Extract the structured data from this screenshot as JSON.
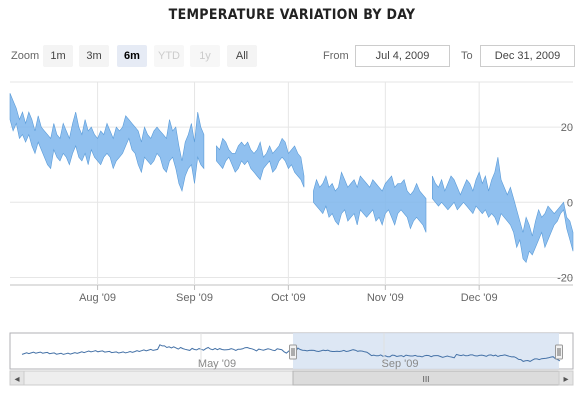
{
  "chart_data": {
    "type": "area",
    "title": "TEMPERATURE VARIATION BY DAY",
    "x_range": [
      "2009-07-04",
      "2009-12-31"
    ],
    "y_range": [
      -22,
      32
    ],
    "x_ticks": [
      "Aug '09",
      "Sep '09",
      "Oct '09",
      "Nov '09",
      "Dec '09"
    ],
    "y_ticks": [
      20,
      0,
      -20
    ],
    "series": [
      {
        "color": "#7cb5ec",
        "segments": [
          {
            "start": "2009-07-04",
            "low": [
              22,
              19,
              21,
              17,
              18,
              16,
              18,
              15,
              13,
              16,
              14,
              12,
              10,
              9,
              14,
              12,
              11,
              13,
              12,
              10,
              13,
              15,
              12,
              11,
              13,
              10,
              14,
              12,
              11,
              10,
              12,
              13,
              12,
              9,
              11,
              12,
              13,
              15,
              17,
              14,
              13,
              10,
              8,
              12,
              11,
              10,
              11,
              13,
              12,
              9,
              8,
              11,
              12,
              9,
              5,
              3,
              7,
              9,
              10,
              5,
              12,
              10,
              9
            ],
            "high": [
              29,
              27,
              25,
              22,
              24,
              21,
              24,
              22,
              19,
              23,
              20,
              19,
              18,
              17,
              21,
              18,
              17,
              21,
              19,
              17,
              21,
              24,
              20,
              18,
              22,
              19,
              20,
              18,
              17,
              19,
              18,
              21,
              19,
              17,
              20,
              19,
              20,
              23,
              22,
              21,
              20,
              19,
              16,
              20,
              18,
              17,
              19,
              20,
              19,
              18,
              17,
              22,
              19,
              20,
              15,
              11,
              16,
              18,
              21,
              16,
              24,
              20,
              18
            ]
          },
          {
            "start": "2009-09-08",
            "low": [
              11,
              10,
              9,
              11,
              12,
              10,
              8,
              9,
              11,
              10,
              11,
              9,
              8,
              7,
              6,
              9,
              10,
              11,
              8,
              9,
              11,
              12,
              11,
              9,
              10,
              8,
              7,
              6,
              4
            ],
            "high": [
              15,
              14,
              17,
              16,
              14,
              13,
              13,
              15,
              16,
              15,
              16,
              14,
              13,
              14,
              16,
              12,
              13,
              15,
              13,
              14,
              15,
              17,
              16,
              13,
              14,
              15,
              13,
              12,
              7
            ]
          },
          {
            "start": "2009-10-09",
            "low": [
              0,
              -1,
              -2,
              -3,
              -1,
              -4,
              -3,
              -5,
              -6,
              -3,
              -2,
              -5,
              -4,
              -3,
              -6,
              -2,
              -3,
              -4,
              -3,
              -2,
              -5,
              -4,
              -6,
              -3,
              -2,
              -4,
              -6,
              -3,
              -2,
              -3,
              -4,
              -7,
              -5,
              -4,
              -5,
              -6,
              -8
            ],
            "high": [
              3,
              6,
              4,
              5,
              7,
              4,
              5,
              3,
              4,
              8,
              6,
              4,
              5,
              6,
              4,
              7,
              6,
              5,
              4,
              6,
              5,
              4,
              3,
              5,
              6,
              7,
              4,
              5,
              5,
              6,
              3,
              2,
              3,
              5,
              3,
              2,
              1
            ]
          },
          {
            "start": "2009-11-16",
            "low": [
              1,
              0,
              -1,
              0,
              -1,
              -2,
              -1,
              0,
              -2,
              -1,
              0,
              -1,
              -2,
              -3,
              -1,
              -2,
              -3,
              -2,
              -4,
              -3,
              -4,
              -6,
              -3,
              -4,
              -5,
              -6,
              -8,
              -12,
              -10,
              -15,
              -16,
              -13,
              -14,
              -12,
              -10,
              -8,
              -12,
              -10,
              -8,
              -6,
              -5,
              -3,
              -2,
              -7,
              -10,
              -13
            ],
            "high": [
              7,
              5,
              4,
              6,
              3,
              5,
              7,
              6,
              4,
              2,
              4,
              6,
              5,
              3,
              6,
              8,
              5,
              7,
              3,
              6,
              8,
              12,
              6,
              4,
              2,
              4,
              1,
              -2,
              -5,
              -8,
              -4,
              -6,
              -9,
              -5,
              -2,
              -4,
              -3,
              -1,
              -2,
              -3,
              -2,
              -1,
              0,
              -4,
              -5,
              -8
            ]
          }
        ]
      }
    ],
    "navigator": {
      "x_ticks": [
        "May '09",
        "Sep '09"
      ],
      "visible_start": "2009-07-04",
      "visible_end": "2009-12-31"
    },
    "grid": true
  },
  "controls": {
    "zoom_label": "Zoom",
    "buttons": [
      {
        "label": "1m",
        "state": "normal"
      },
      {
        "label": "3m",
        "state": "normal"
      },
      {
        "label": "6m",
        "state": "selected"
      },
      {
        "label": "YTD",
        "state": "disabled"
      },
      {
        "label": "1y",
        "state": "disabled"
      },
      {
        "label": "All",
        "state": "normal"
      }
    ],
    "from_label": "From",
    "from_value": "Jul 4, 2009",
    "to_label": "To",
    "to_value": "Dec 31, 2009"
  },
  "scrollbar": {
    "left_arrow": "◂",
    "right_arrow": "▸",
    "grip": "III"
  }
}
